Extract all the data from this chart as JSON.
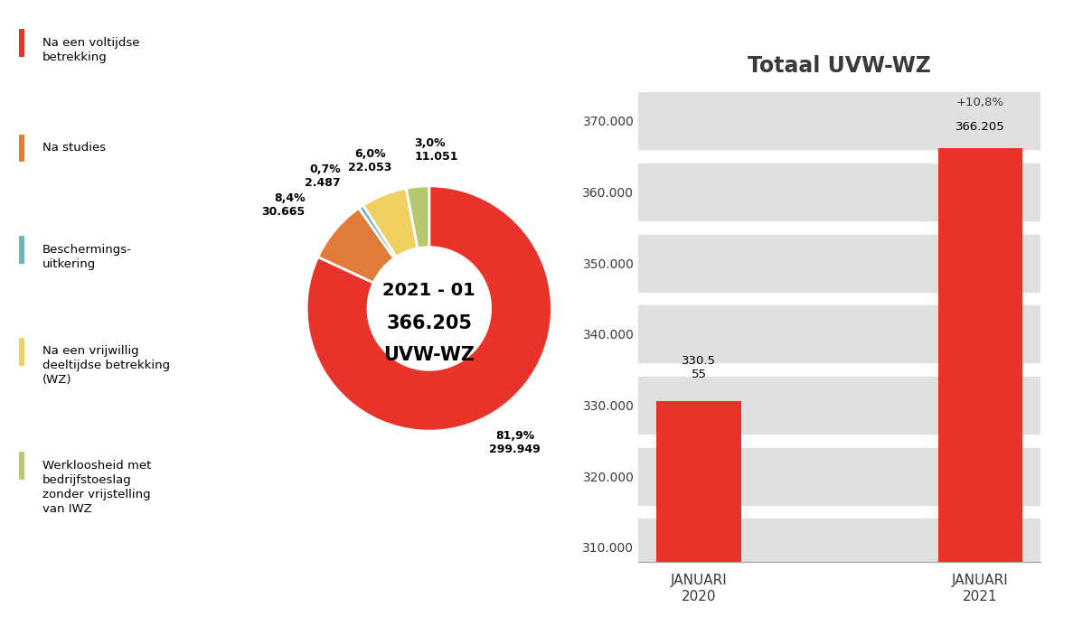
{
  "pie_values": [
    299949,
    30665,
    2487,
    22053,
    11051
  ],
  "pie_colors": [
    "#e8332a",
    "#e07b3a",
    "#6ab4bc",
    "#f0d060",
    "#b8c870"
  ],
  "pie_labels_pct": [
    "81,9%",
    "8,4%",
    "0,7%",
    "6,0%",
    "3,0%"
  ],
  "pie_labels_val": [
    "299.949",
    "30.665",
    "2.487",
    "22.053",
    "11.051"
  ],
  "pie_center_line1": "2021 - 01",
  "pie_center_line2": "366.205",
  "pie_center_line3": "UVW-WZ",
  "legend_labels": [
    "Na een voltijdse\nbetrekking",
    "Na studies",
    "Beschermings-\nuitkering",
    "Na een vrijwillig\ndeeltijdse betrekking\n(WZ)",
    "Werkloosheid met\nbedrijfstoeslag\nzonder vrijstelling\nvan IWZ"
  ],
  "bar_categories": [
    "JANUARI\n2020",
    "JANUARI\n2021"
  ],
  "bar_values": [
    330555,
    366205
  ],
  "bar_color": "#e8332a",
  "bar_title": "Totaal UVW-WZ",
  "bar_annotation": "+10,8%",
  "bar_ylim": [
    308000,
    374000
  ],
  "bar_yticks": [
    310000,
    320000,
    330000,
    340000,
    350000,
    360000,
    370000
  ],
  "bar_ytick_labels": [
    "310.000",
    "320.000",
    "330.000",
    "340.000",
    "350.000",
    "360.000",
    "370.000"
  ],
  "text_color": "#3a3a3a",
  "background_color": "#ffffff"
}
